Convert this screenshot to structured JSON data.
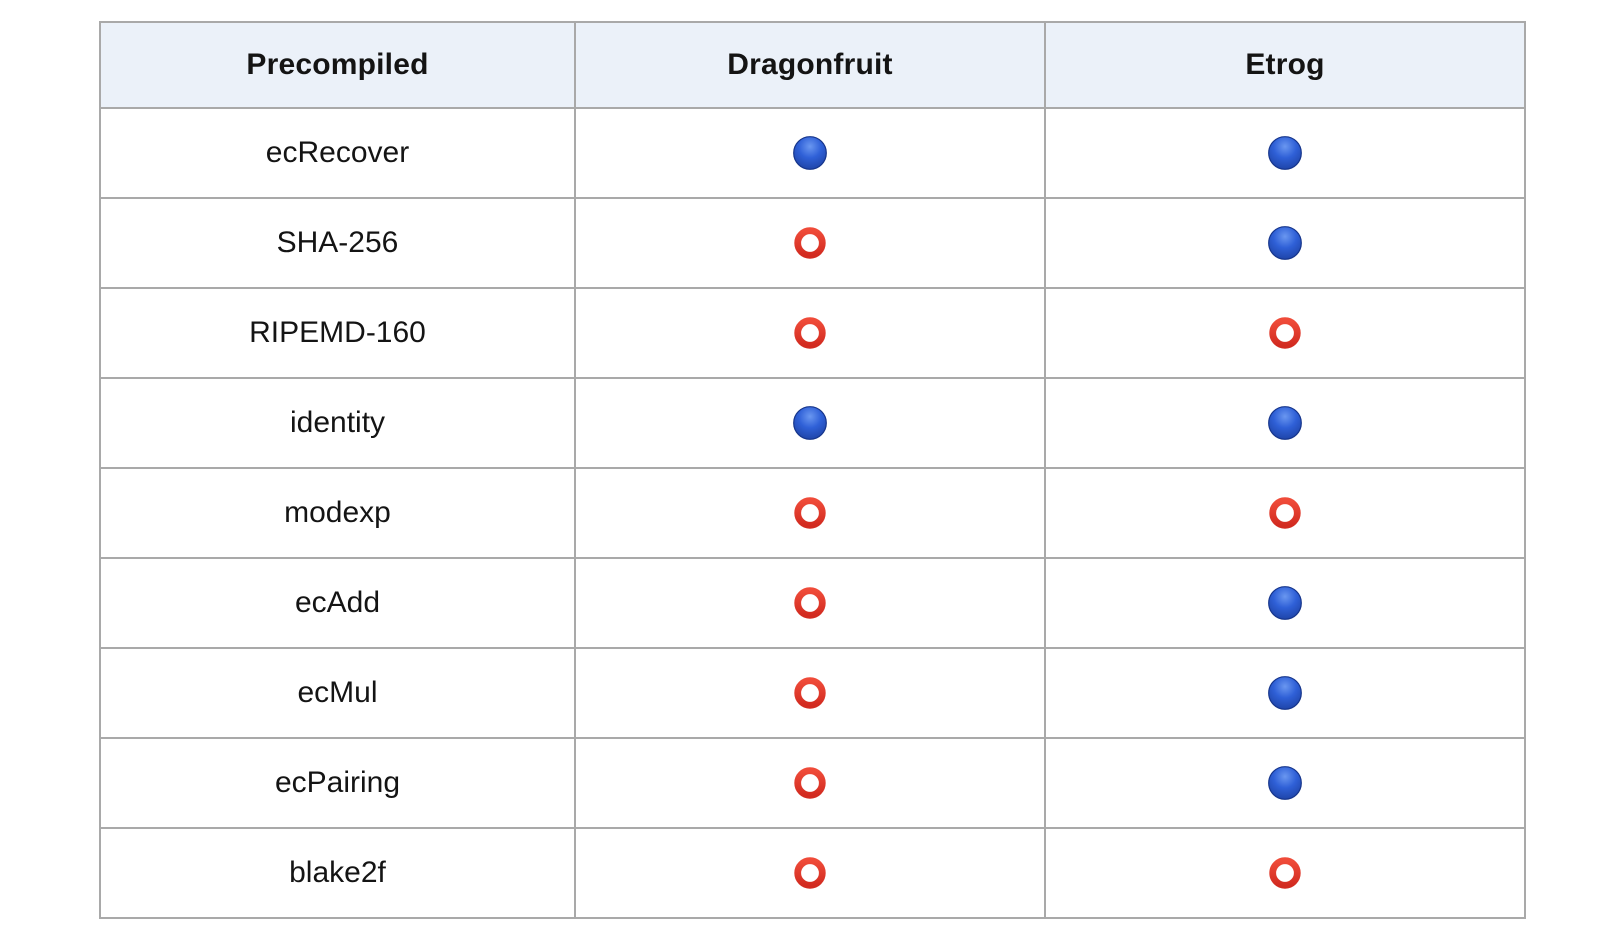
{
  "table": {
    "columns": [
      {
        "label": "Precompiled"
      },
      {
        "label": "Dragonfruit"
      },
      {
        "label": "Etrog"
      }
    ],
    "rows": [
      {
        "label": "ecRecover",
        "statuses": [
          "supported",
          "supported"
        ]
      },
      {
        "label": "SHA-256",
        "statuses": [
          "not_supported",
          "supported"
        ]
      },
      {
        "label": "RIPEMD-160",
        "statuses": [
          "not_supported",
          "not_supported"
        ]
      },
      {
        "label": "identity",
        "statuses": [
          "supported",
          "supported"
        ]
      },
      {
        "label": "modexp",
        "statuses": [
          "not_supported",
          "not_supported"
        ]
      },
      {
        "label": "ecAdd",
        "statuses": [
          "not_supported",
          "supported"
        ]
      },
      {
        "label": "ecMul",
        "statuses": [
          "not_supported",
          "supported"
        ]
      },
      {
        "label": "ecPairing",
        "statuses": [
          "not_supported",
          "supported"
        ]
      },
      {
        "label": "blake2f",
        "statuses": [
          "not_supported",
          "not_supported"
        ]
      }
    ],
    "status_icons": {
      "supported": "blue-circle-icon",
      "not_supported": "hollow-red-circle-icon"
    },
    "colors": {
      "header_bg": "#ebf1f9",
      "border": "#a9a9a9",
      "supported_blue": "#2e5fd6",
      "not_supported_red": "#e1392c",
      "text": "#141414"
    }
  }
}
